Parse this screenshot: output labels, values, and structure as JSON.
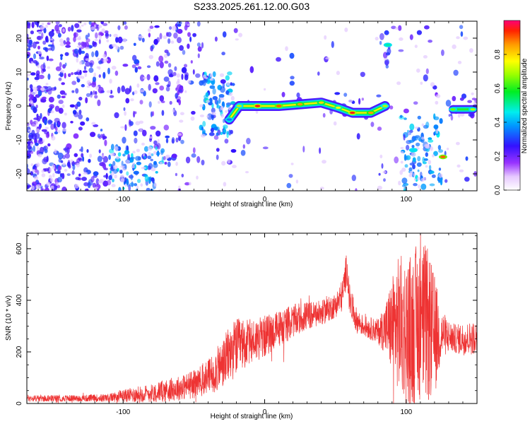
{
  "figure_title": "S233.2025.261.12.00.G03",
  "chart_data": [
    {
      "type": "heatmap",
      "title": "S233.2025.261.12.00.G03",
      "xlabel": "Height of straight line (km)",
      "ylabel": "Frequency (Hz)",
      "xlim": [
        -168,
        150
      ],
      "ylim": [
        -25,
        25
      ],
      "x_ticks": [
        -100,
        0,
        100
      ],
      "x_tick_labels": [
        "-100",
        "0",
        "100"
      ],
      "y_ticks": [
        -20,
        -10,
        0,
        10,
        20
      ],
      "y_tick_labels": [
        "-20",
        "-10",
        "0",
        "10",
        "20"
      ],
      "colorbar": {
        "label": "Normalized spectral amplitude",
        "range": [
          0.0,
          1.0
        ],
        "ticks": [
          0.0,
          0.2,
          0.4,
          0.6,
          0.8
        ],
        "tick_labels": [
          "0.0",
          "0.2",
          "0.4",
          "0.6",
          "0.8"
        ],
        "colormap": "rainbow (white-violet-blue-cyan-green-yellow-red)"
      },
      "ridge": {
        "description": "high-amplitude frequency ridge",
        "points": [
          {
            "x": -25,
            "y": -4,
            "amp": 0.35
          },
          {
            "x": -18,
            "y": 0,
            "amp": 0.7
          },
          {
            "x": -5,
            "y": 0,
            "amp": 0.95
          },
          {
            "x": 10,
            "y": 0,
            "amp": 0.9
          },
          {
            "x": 25,
            "y": 0.5,
            "amp": 0.85
          },
          {
            "x": 40,
            "y": 1,
            "amp": 0.8
          },
          {
            "x": 52,
            "y": -0.5,
            "amp": 0.75
          },
          {
            "x": 62,
            "y": -2,
            "amp": 0.95
          },
          {
            "x": 75,
            "y": -2,
            "amp": 0.85
          },
          {
            "x": 85,
            "y": 0,
            "amp": 0.7
          },
          {
            "x": 87,
            "y": 18,
            "amp": 0.5
          },
          {
            "x": 105,
            "y": -13,
            "amp": 0.45
          },
          {
            "x": 126,
            "y": -15,
            "amp": 0.9
          },
          {
            "x": 133,
            "y": -1,
            "amp": 0.65
          },
          {
            "x": 147,
            "y": -1,
            "amp": 0.7
          }
        ]
      }
    },
    {
      "type": "line",
      "xlabel": "Height of straight line (km)",
      "ylabel": "SNR (10 * v/v)",
      "xlim": [
        -168,
        150
      ],
      "ylim": [
        0,
        660
      ],
      "x_ticks": [
        -100,
        0,
        100
      ],
      "x_tick_labels": [
        "-100",
        "0",
        "100"
      ],
      "y_ticks": [
        0,
        200,
        400,
        600
      ],
      "y_tick_labels": [
        "0",
        "200",
        "400",
        "600"
      ],
      "color": "#ee3333",
      "series": [
        {
          "name": "SNR",
          "x": [
            -168,
            -150,
            -130,
            -110,
            -100,
            -90,
            -80,
            -70,
            -60,
            -50,
            -40,
            -30,
            -25,
            -20,
            -15,
            -10,
            0,
            10,
            20,
            30,
            40,
            50,
            55,
            58,
            60,
            65,
            70,
            80,
            85,
            90,
            95,
            100,
            105,
            110,
            115,
            120,
            125,
            130,
            135,
            140,
            150
          ],
          "y": [
            20,
            20,
            20,
            22,
            30,
            35,
            40,
            50,
            60,
            75,
            100,
            150,
            190,
            220,
            230,
            240,
            260,
            290,
            320,
            340,
            350,
            380,
            420,
            530,
            400,
            320,
            300,
            280,
            290,
            300,
            310,
            280,
            290,
            330,
            300,
            260,
            270,
            260,
            250,
            250,
            255
          ],
          "noise": [
            8,
            8,
            8,
            10,
            15,
            20,
            22,
            28,
            30,
            35,
            45,
            60,
            70,
            70,
            60,
            55,
            50,
            45,
            40,
            35,
            30,
            30,
            40,
            40,
            40,
            30,
            25,
            30,
            60,
            120,
            170,
            180,
            190,
            200,
            190,
            150,
            60,
            40,
            35,
            40,
            40
          ]
        }
      ]
    }
  ]
}
